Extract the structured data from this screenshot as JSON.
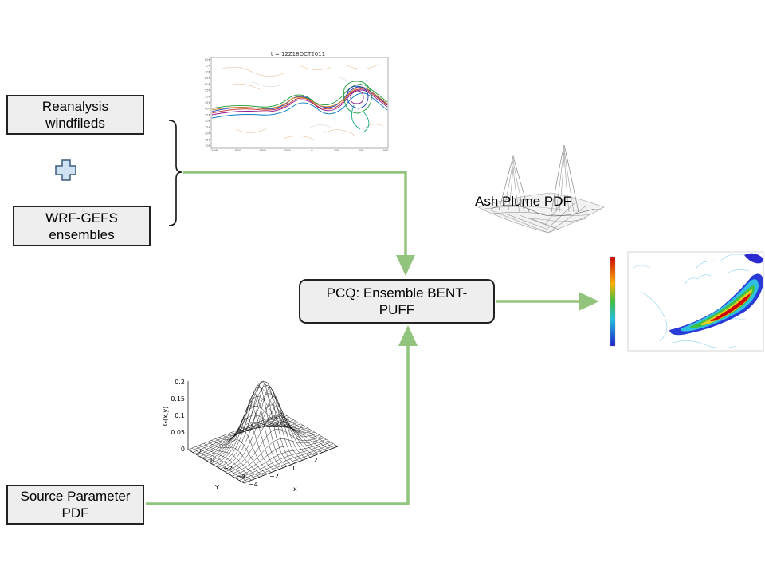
{
  "boxes": {
    "reanalysis": [
      "Reanalysis",
      "windfileds"
    ],
    "wrf_gefs": [
      "WRF-GEFS",
      "ensembles"
    ],
    "source": [
      "Source Parameter",
      "PDF"
    ],
    "pcq": [
      "PCQ: Ensemble BENT-",
      "PUFF"
    ]
  },
  "labels": {
    "ash_plume": "Ash Plume PDF"
  },
  "wind_map": {
    "title": "t = 12Z18OCT2011",
    "lat_labels": [
      "80N",
      "75N",
      "70N",
      "65N",
      "60N",
      "55N",
      "50N",
      "45N",
      "40N",
      "35N",
      "30N",
      "25N",
      "20N",
      "15N",
      "10N"
    ],
    "lon_labels": [
      "120W",
      "90W",
      "60W",
      "30W",
      "0",
      "30E",
      "60E",
      "90E"
    ]
  },
  "gaussian_plot": {
    "zlabel": "G(x,y)",
    "z_ticks": [
      "0.2",
      "0.15",
      "0.1",
      "0.05",
      "0"
    ],
    "y_ticks": [
      "2",
      "0",
      "−2",
      "−4"
    ],
    "x_ticks": [
      "−4",
      "−2",
      "0",
      "2"
    ],
    "xlabel": "x",
    "ylabel": "Y"
  },
  "colors": {
    "arrow": "#93c47d",
    "plus_fill": "#cfe2f3",
    "plus_stroke": "#3d5a7a"
  }
}
